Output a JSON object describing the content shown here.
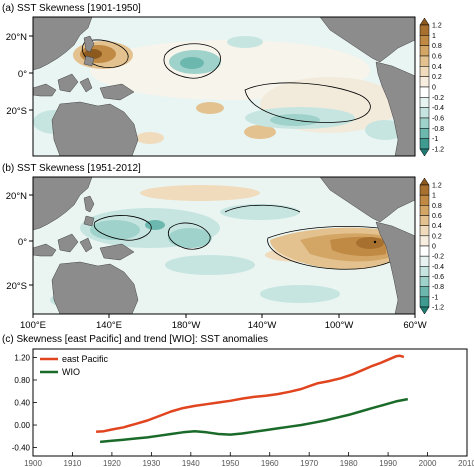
{
  "panels": {
    "a": {
      "title": "(a) SST Skewness [1901-1950]"
    },
    "b": {
      "title": "(b) SST Skewness [1951-2012]"
    },
    "c": {
      "title": "(c) Skewness [east Pacific] and trend [WIO]: SST anomalies"
    }
  },
  "map_axes": {
    "lat_ticks": [
      "20°N",
      "0°",
      "20°S"
    ],
    "lon_ticks": [
      "100°E",
      "140°E",
      "180°W",
      "140°W",
      "100°W",
      "60°W"
    ]
  },
  "colorbar": {
    "labels": [
      "1.2",
      "1",
      "0.8",
      "0.6",
      "0.4",
      "0.2",
      "0",
      "-0.2",
      "-0.4",
      "-0.6",
      "-0.8",
      "-1",
      "-1.2"
    ],
    "levels": [
      1.2,
      1.0,
      0.8,
      0.6,
      0.4,
      0.2,
      0.0,
      -0.2,
      -0.4,
      -0.6,
      -0.8,
      -1.0,
      -1.2
    ],
    "colors": [
      "#8c5a1e",
      "#a8702e",
      "#c08a45",
      "#d4a665",
      "#e3c290",
      "#f0dcbd",
      "#f7eee0",
      "#ffffff",
      "#e6f3f1",
      "#c6e5e0",
      "#9fd2ca",
      "#6cb8ae",
      "#3f9a90",
      "#1f7a72"
    ]
  },
  "colors": {
    "land": "#8c8c8c",
    "east_pacific": "#e0451f",
    "wio": "#1a6b2a"
  },
  "chart_data": {
    "type": "line",
    "title": "(c) Skewness [east Pacific] and trend [WIO]: SST anomalies",
    "xlim": [
      1900,
      2010
    ],
    "ylim": [
      -0.55,
      1.35
    ],
    "x_ticks": [
      1900,
      1910,
      1920,
      1930,
      1940,
      1950,
      1960,
      1970,
      1980,
      1990,
      2000,
      2010
    ],
    "y_ticks": [
      "1.20",
      "0.80",
      "0.40",
      "0.00",
      "-0.40"
    ],
    "legend_position": "top-left",
    "series": [
      {
        "name": "east Pacific",
        "x": [
          1916,
          1918,
          1920,
          1923,
          1926,
          1929,
          1932,
          1935,
          1938,
          1941,
          1944,
          1947,
          1950,
          1953,
          1956,
          1959,
          1962,
          1965,
          1968,
          1970,
          1972,
          1975,
          1978,
          1981,
          1984,
          1986,
          1988,
          1990,
          1992,
          1993,
          1994
        ],
        "y": [
          -0.12,
          -0.11,
          -0.08,
          -0.04,
          0.02,
          0.08,
          0.16,
          0.24,
          0.3,
          0.34,
          0.37,
          0.4,
          0.43,
          0.47,
          0.5,
          0.52,
          0.55,
          0.59,
          0.64,
          0.69,
          0.74,
          0.78,
          0.83,
          0.9,
          0.99,
          1.05,
          1.1,
          1.16,
          1.22,
          1.23,
          1.21
        ]
      },
      {
        "name": "WIO",
        "x": [
          1917,
          1920,
          1923,
          1926,
          1929,
          1932,
          1935,
          1938,
          1941,
          1944,
          1947,
          1950,
          1953,
          1956,
          1959,
          1962,
          1965,
          1968,
          1971,
          1974,
          1977,
          1980,
          1983,
          1986,
          1989,
          1992,
          1995
        ],
        "y": [
          -0.3,
          -0.28,
          -0.26,
          -0.24,
          -0.22,
          -0.19,
          -0.16,
          -0.13,
          -0.11,
          -0.13,
          -0.16,
          -0.17,
          -0.15,
          -0.12,
          -0.09,
          -0.06,
          -0.03,
          0.0,
          0.04,
          0.08,
          0.13,
          0.18,
          0.24,
          0.3,
          0.36,
          0.42,
          0.46
        ]
      }
    ]
  }
}
